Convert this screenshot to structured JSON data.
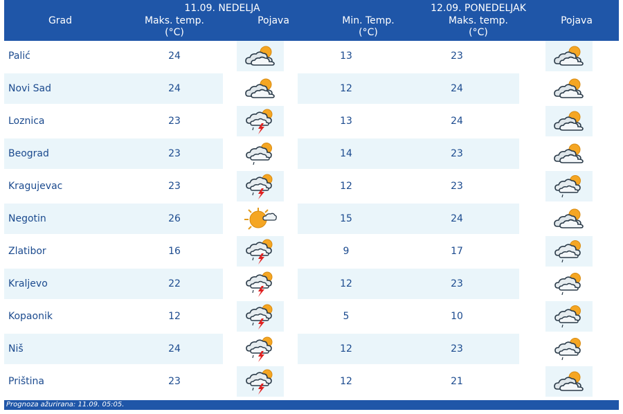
{
  "header": {
    "city_col": "Grad",
    "day1": {
      "date": "11.09. NEDELJA",
      "max_label": "Maks. temp.",
      "max_unit": "(°C)",
      "phen_label": "Pojava"
    },
    "day2": {
      "date": "12.09. PONEDELJAK",
      "min_label": "Min. Temp.",
      "min_unit": "(°C)",
      "max_label": "Maks. temp.",
      "max_unit": "(°C)",
      "phen_label": "Pojava"
    }
  },
  "rows": [
    {
      "city": "Palić",
      "d1_max": "24",
      "d1_icon": "partly-cloudy-icon",
      "d2_min": "13",
      "d2_max": "23",
      "d2_icon": "partly-cloudy-icon"
    },
    {
      "city": "Novi Sad",
      "d1_max": "24",
      "d1_icon": "partly-cloudy-icon",
      "d2_min": "12",
      "d2_max": "24",
      "d2_icon": "partly-cloudy-icon"
    },
    {
      "city": "Loznica",
      "d1_max": "23",
      "d1_icon": "thunderstorm-icon",
      "d2_min": "13",
      "d2_max": "24",
      "d2_icon": "partly-cloudy-icon"
    },
    {
      "city": "Beograd",
      "d1_max": "23",
      "d1_icon": "cloudy-drizzle-icon",
      "d2_min": "14",
      "d2_max": "23",
      "d2_icon": "partly-cloudy-icon"
    },
    {
      "city": "Kragujevac",
      "d1_max": "23",
      "d1_icon": "thunderstorm-icon",
      "d2_min": "12",
      "d2_max": "23",
      "d2_icon": "cloudy-drizzle-icon"
    },
    {
      "city": "Negotin",
      "d1_max": "26",
      "d1_icon": "mostly-sunny-icon",
      "d2_min": "15",
      "d2_max": "24",
      "d2_icon": "partly-cloudy-icon"
    },
    {
      "city": "Zlatibor",
      "d1_max": "16",
      "d1_icon": "thunderstorm-icon",
      "d2_min": "9",
      "d2_max": "17",
      "d2_icon": "cloudy-drizzle-icon"
    },
    {
      "city": "Kraljevo",
      "d1_max": "22",
      "d1_icon": "thunderstorm-icon",
      "d2_min": "12",
      "d2_max": "23",
      "d2_icon": "cloudy-drizzle-icon"
    },
    {
      "city": "Kopaonik",
      "d1_max": "12",
      "d1_icon": "thunderstorm-icon",
      "d2_min": "5",
      "d2_max": "10",
      "d2_icon": "cloudy-drizzle-icon"
    },
    {
      "city": "Niš",
      "d1_max": "24",
      "d1_icon": "thunderstorm-icon",
      "d2_min": "12",
      "d2_max": "23",
      "d2_icon": "cloudy-drizzle-icon"
    },
    {
      "city": "Priština",
      "d1_max": "23",
      "d1_icon": "thunderstorm-icon",
      "d2_min": "12",
      "d2_max": "21",
      "d2_icon": "partly-cloudy-icon"
    }
  ],
  "footer": {
    "text": "Prognoza ažurirana:  11.09. 05:05."
  },
  "colors": {
    "header_bg": "#1f56a8",
    "alt_row": "#eaf5fa",
    "text": "#1b4a8e",
    "sun": "#f5a623",
    "bolt": "#e02020"
  }
}
